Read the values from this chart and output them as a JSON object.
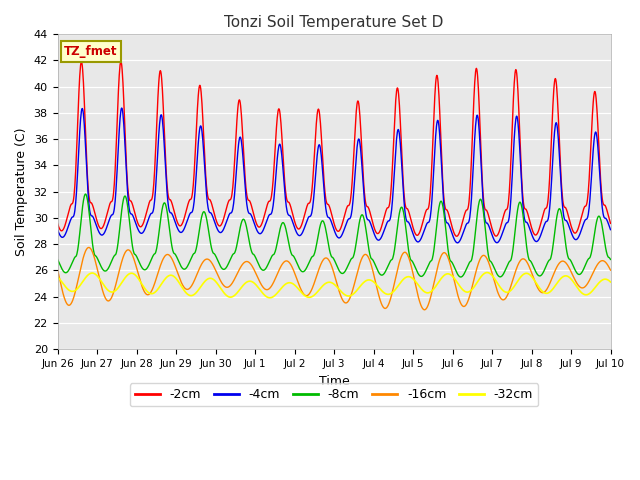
{
  "title": "Tonzi Soil Temperature Set D",
  "xlabel": "Time",
  "ylabel": "Soil Temperature (C)",
  "ylim": [
    20,
    44
  ],
  "xlim": [
    0,
    336
  ],
  "bg_color": "#e8e8e8",
  "fig_color": "#ffffff",
  "tick_labels": [
    "Jun 26",
    "Jun 27",
    "Jun 28",
    "Jun 29",
    "Jun 30",
    "Jul 1",
    "Jul 2",
    "Jul 3",
    "Jul 4",
    "Jul 5",
    "Jul 6",
    "Jul 7",
    "Jul 8",
    "Jul 9",
    "Jul 10"
  ],
  "label_box_text": "TZ_fmet",
  "label_box_facecolor": "#ffffcc",
  "label_box_edgecolor": "#999900",
  "label_box_textcolor": "#cc0000",
  "line_colors": [
    "#ff0000",
    "#0000ee",
    "#00bb00",
    "#ff8800",
    "#ffff00"
  ],
  "line_labels": [
    "-2cm",
    "-4cm",
    "-8cm",
    "-16cm",
    "-32cm"
  ],
  "line_widths": [
    1.0,
    1.0,
    1.0,
    1.0,
    1.2
  ]
}
